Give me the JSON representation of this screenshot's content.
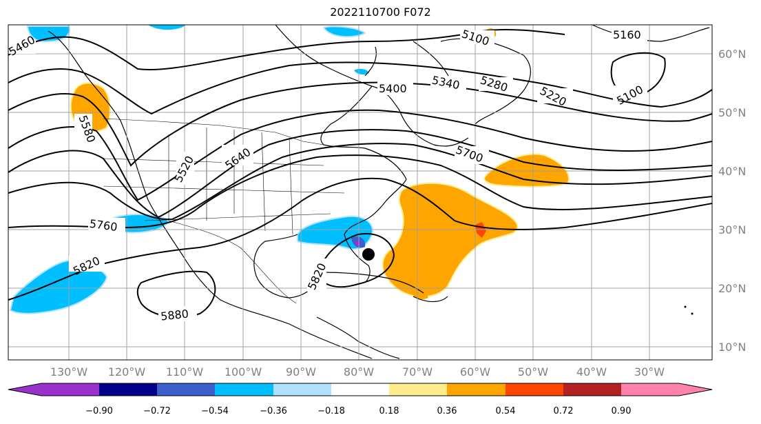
{
  "title": "2022110700 F072",
  "longitude_labels": [
    "130°W",
    "120°W",
    "110°W",
    "100°W",
    "90°W",
    "80°W",
    "70°W",
    "60°W",
    "50°W",
    "40°W",
    "30°W"
  ],
  "latitude_labels": [
    "60°N",
    "50°N",
    "40°N",
    "30°N",
    "20°N",
    "10°N"
  ],
  "contour_labels": [
    "5460",
    "5100",
    "5160",
    "5100",
    "5220",
    "5280",
    "5340",
    "5400",
    "5580",
    "5520",
    "5640",
    "5700",
    "5760",
    "5820",
    "5820",
    "5880"
  ],
  "colorbar": {
    "ticks": [
      "−0.90",
      "−0.72",
      "−0.54",
      "−0.36",
      "−0.18",
      "0.18",
      "0.36",
      "0.54",
      "0.72",
      "0.90"
    ],
    "colors": [
      "#9932cc",
      "#00008b",
      "#3a5fcd",
      "#00bfff",
      "#b0e2ff",
      "#ffffff",
      "#ffec8b",
      "#ffa500",
      "#ff4500",
      "#b22222",
      "#ff82ab"
    ]
  },
  "marker": "storm-center-dot"
}
